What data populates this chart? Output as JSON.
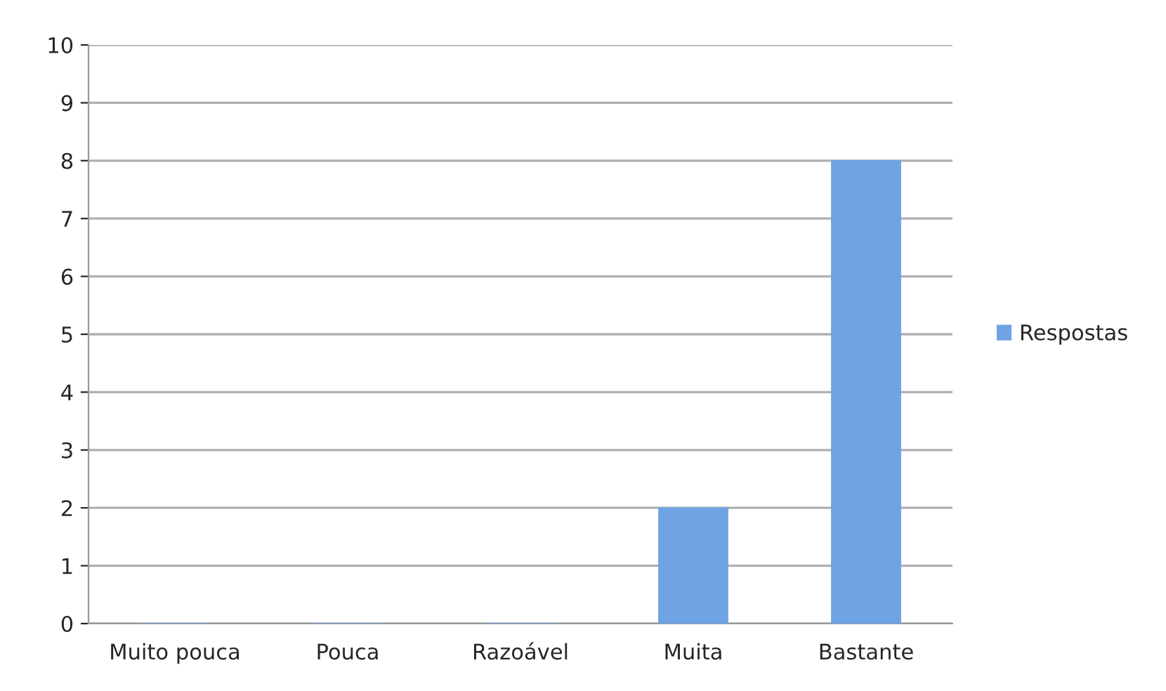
{
  "chart_data": {
    "type": "bar",
    "categories": [
      "Muito pouca",
      "Pouca",
      "Razoável",
      "Muita",
      "Bastante"
    ],
    "series": [
      {
        "name": "Respostas",
        "color": "#6fa3e3",
        "values": [
          0,
          0,
          0,
          2,
          8
        ]
      }
    ],
    "ylim": [
      0,
      10
    ],
    "yticks": [
      0,
      1,
      2,
      3,
      4,
      5,
      6,
      7,
      8,
      9,
      10
    ],
    "grid": "y",
    "legend": "right"
  }
}
